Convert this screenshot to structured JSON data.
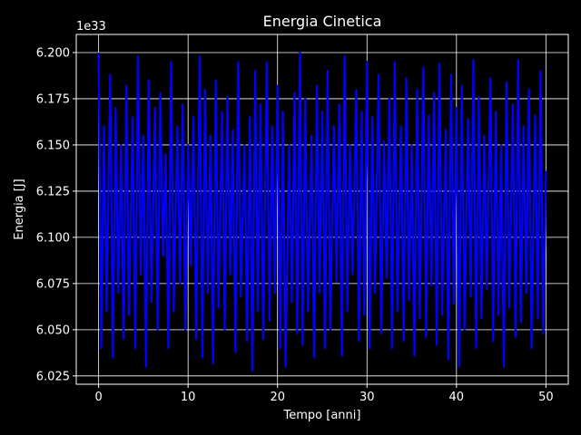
{
  "chart_data": {
    "type": "line",
    "title": "Energia Cinetica",
    "xlabel": "Tempo [anni]",
    "ylabel": "Energia [J]",
    "y_offset_label": "1e33",
    "xlim": [
      -2.5,
      52.5
    ],
    "ylim": [
      6.0205,
      6.2098
    ],
    "x_ticks": [
      0,
      10,
      20,
      30,
      40,
      50
    ],
    "x_tick_labels": [
      "0",
      "10",
      "20",
      "30",
      "40",
      "50"
    ],
    "y_ticks": [
      6.025,
      6.05,
      6.075,
      6.1,
      6.125,
      6.15,
      6.175,
      6.2
    ],
    "y_tick_labels": [
      "6.025",
      "6.050",
      "6.075",
      "6.100",
      "6.125",
      "6.150",
      "6.175",
      "6.200"
    ],
    "grid": true,
    "legend": "none",
    "colors": {
      "background": "#000000",
      "line": "#0000ff",
      "grid": "#ffffff",
      "text": "#ffffff"
    },
    "series": [
      {
        "x": [
          0.0,
          0.3,
          0.6,
          0.9,
          1.3,
          1.6,
          1.9,
          2.2,
          2.5,
          2.8,
          3.1,
          3.4,
          3.8,
          4.1,
          4.4,
          4.7,
          5.0,
          5.3,
          5.6,
          5.9,
          6.3,
          6.6,
          6.9,
          7.2,
          7.5,
          7.8,
          8.1,
          8.4,
          8.8,
          9.1,
          9.4,
          9.7,
          10.0,
          10.3,
          10.6,
          10.9,
          11.3,
          11.6,
          11.9,
          12.2,
          12.5,
          12.8,
          13.1,
          13.4,
          13.8,
          14.1,
          14.4,
          14.7,
          15.0,
          15.3,
          15.6,
          15.9,
          16.3,
          16.6,
          16.9,
          17.2,
          17.5,
          17.8,
          18.1,
          18.4,
          18.8,
          19.1,
          19.4,
          19.7,
          20.0,
          20.3,
          20.6,
          20.9,
          21.3,
          21.6,
          21.9,
          22.2,
          22.5,
          22.8,
          23.1,
          23.4,
          23.8,
          24.1,
          24.4,
          24.7,
          25.0,
          25.3,
          25.6,
          25.9,
          26.3,
          26.6,
          26.9,
          27.2,
          27.5,
          27.8,
          28.1,
          28.4,
          28.8,
          29.1,
          29.4,
          29.7,
          30.0,
          30.3,
          30.6,
          30.9,
          31.3,
          31.6,
          31.9,
          32.2,
          32.5,
          32.8,
          33.1,
          33.4,
          33.8,
          34.1,
          34.4,
          34.7,
          35.0,
          35.3,
          35.6,
          35.9,
          36.3,
          36.6,
          36.9,
          37.2,
          37.5,
          37.8,
          38.1,
          38.4,
          38.8,
          39.1,
          39.4,
          39.7,
          40.0,
          40.3,
          40.6,
          40.9,
          41.3,
          41.6,
          41.9,
          42.2,
          42.5,
          42.8,
          43.1,
          43.4,
          43.8,
          44.1,
          44.4,
          44.7,
          45.0,
          45.3,
          45.6,
          45.9,
          46.3,
          46.6,
          46.9,
          47.2,
          47.5,
          47.8,
          48.1,
          48.4,
          48.8,
          49.1,
          49.4,
          49.7,
          50.0
        ],
        "values": [
          6.2,
          6.04,
          6.16,
          6.06,
          6.188,
          6.035,
          6.17,
          6.07,
          6.15,
          6.045,
          6.182,
          6.058,
          6.165,
          6.04,
          6.198,
          6.08,
          6.155,
          6.03,
          6.185,
          6.065,
          6.17,
          6.05,
          6.178,
          6.09,
          6.145,
          6.04,
          6.195,
          6.06,
          6.16,
          6.075,
          6.172,
          6.05,
          6.15,
          6.085,
          6.165,
          6.045,
          6.198,
          6.035,
          6.18,
          6.07,
          6.155,
          6.032,
          6.185,
          6.062,
          6.168,
          6.05,
          6.176,
          6.08,
          6.158,
          6.038,
          6.195,
          6.068,
          6.15,
          6.044,
          6.165,
          6.028,
          6.19,
          6.06,
          6.172,
          6.045,
          6.195,
          6.055,
          6.16,
          6.07,
          6.182,
          6.04,
          6.168,
          6.03,
          6.15,
          6.065,
          6.178,
          6.048,
          6.2,
          6.042,
          6.175,
          6.06,
          6.155,
          6.035,
          6.182,
          6.07,
          6.168,
          6.04,
          6.19,
          6.05,
          6.16,
          6.076,
          6.172,
          6.036,
          6.198,
          6.06,
          6.15,
          6.08,
          6.18,
          6.044,
          6.168,
          6.058,
          6.195,
          6.04,
          6.165,
          6.07,
          6.188,
          6.048,
          6.152,
          6.078,
          6.175,
          6.04,
          6.195,
          6.06,
          6.16,
          6.044,
          6.186,
          6.066,
          6.15,
          6.036,
          6.18,
          6.056,
          6.192,
          6.046,
          6.166,
          6.074,
          6.178,
          6.042,
          6.194,
          6.058,
          6.158,
          6.034,
          6.188,
          6.064,
          6.17,
          6.03,
          6.182,
          6.05,
          6.164,
          6.068,
          6.196,
          6.04,
          6.176,
          6.056,
          6.155,
          6.072,
          6.186,
          6.044,
          6.168,
          6.058,
          6.15,
          6.03,
          6.184,
          6.062,
          6.172,
          6.046,
          6.196,
          6.054,
          6.16,
          6.07,
          6.18,
          6.04,
          6.166,
          6.056,
          6.19,
          6.048,
          6.136
        ]
      }
    ]
  }
}
